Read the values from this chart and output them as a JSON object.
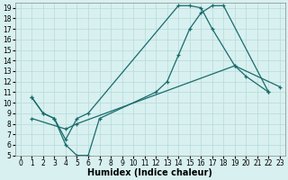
{
  "title": "",
  "xlabel": "Humidex (Indice chaleur)",
  "xlim": [
    -0.5,
    23.5
  ],
  "ylim": [
    5,
    19.5
  ],
  "xticks": [
    0,
    1,
    2,
    3,
    4,
    5,
    6,
    7,
    8,
    9,
    10,
    11,
    12,
    13,
    14,
    15,
    16,
    17,
    18,
    19,
    20,
    21,
    22,
    23
  ],
  "yticks": [
    5,
    6,
    7,
    8,
    9,
    10,
    11,
    12,
    13,
    14,
    15,
    16,
    17,
    18,
    19
  ],
  "line1_x": [
    1,
    2,
    3,
    4,
    5,
    6,
    7,
    12,
    13,
    14,
    15,
    16,
    17,
    18,
    22
  ],
  "line1_y": [
    10.5,
    9.0,
    8.5,
    6.0,
    5.0,
    5.0,
    8.5,
    11.0,
    12.0,
    14.5,
    17.0,
    18.5,
    19.2,
    19.2,
    11.0
  ],
  "line2_x": [
    1,
    2,
    3,
    4,
    5,
    6,
    14,
    15,
    16,
    17,
    19,
    20,
    22
  ],
  "line2_y": [
    10.5,
    9.0,
    8.5,
    6.5,
    8.5,
    9.0,
    19.2,
    19.2,
    19.0,
    17.0,
    13.5,
    12.5,
    11.0
  ],
  "line3_x": [
    1,
    4,
    5,
    19,
    23
  ],
  "line3_y": [
    8.5,
    7.5,
    8.0,
    13.5,
    11.5
  ],
  "line_color": "#1a6b6b",
  "bg_color": "#d8f0f0",
  "grid_color": "#b8dada",
  "xlabel_fontsize": 7,
  "tick_fontsize": 5.5
}
